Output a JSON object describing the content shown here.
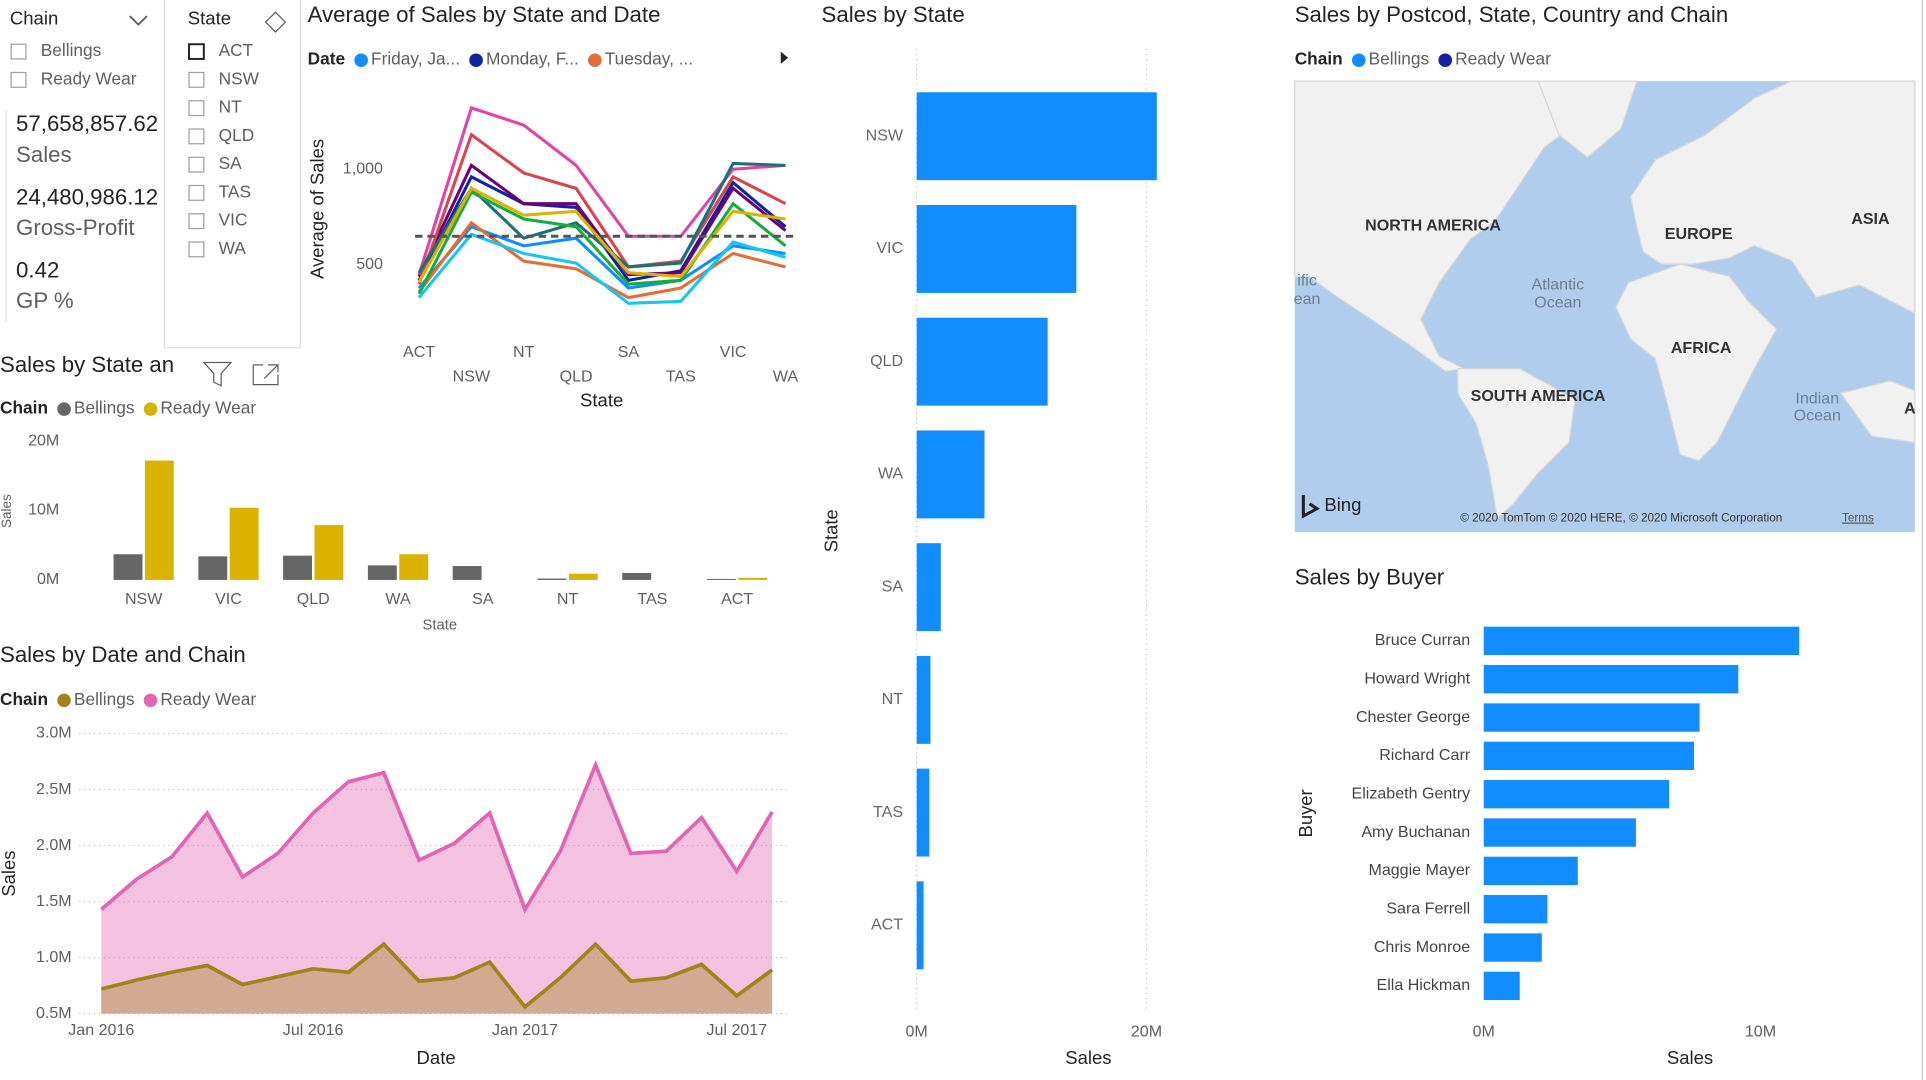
{
  "chain_slicer": {
    "title": "Chain",
    "items": [
      "Bellings",
      "Ready Wear"
    ]
  },
  "state_slicer": {
    "title": "State",
    "items": [
      "ACT",
      "NSW",
      "NT",
      "QLD",
      "SA",
      "TAS",
      "VIC",
      "WA"
    ]
  },
  "cards": [
    {
      "value": "57,658,857.62",
      "label": "Sales"
    },
    {
      "value": "24,480,986.12",
      "label": "Gross-Profit"
    },
    {
      "value": "0.42",
      "label": "GP %"
    }
  ],
  "map": {
    "title": "Sales by Postcod, State, Country and Chain",
    "legend_title": "Chain",
    "legend": [
      {
        "name": "Bellings",
        "color": "#118dff"
      },
      {
        "name": "Ready Wear",
        "color": "#12239e"
      }
    ],
    "labels": [
      "NORTH AMERICA",
      "EUROPE",
      "ASIA",
      "ific",
      "ean",
      "Atlantic",
      "Ocean",
      "AFRICA",
      "SOUTH AMERICA",
      "Indian",
      "Ocean",
      "A"
    ],
    "brand": "Bing",
    "copyright": "© 2020 TomTom © 2020 HERE, © 2020 Microsoft Corporation",
    "terms": "Terms"
  },
  "chart_data": [
    {
      "type": "line",
      "title": "Average of Sales by State and Date",
      "legend_title": "Date",
      "x_label": "State",
      "y_label": "Average of Sales",
      "categories": [
        "ACT",
        "NSW",
        "NT",
        "QLD",
        "SA",
        "TAS",
        "VIC",
        "WA"
      ],
      "ylim": [
        280,
        1370
      ],
      "yticks": [
        500,
        {
          "value": 1000,
          "label": "1,000"
        }
      ],
      "average_line": 650,
      "series": [
        {
          "name": "Friday, Ja...",
          "color": "#118dff",
          "values": [
            380,
            700,
            600,
            640,
            380,
            420,
            600,
            560
          ]
        },
        {
          "name": "Monday, F...",
          "color": "#12239e",
          "values": [
            420,
            960,
            820,
            800,
            420,
            470,
            930,
            700
          ]
        },
        {
          "name": "Tuesday, ...",
          "color": "#e66c37",
          "values": [
            360,
            720,
            520,
            480,
            330,
            380,
            560,
            490
          ]
        },
        {
          "color": "#6b007b",
          "values": [
            440,
            1020,
            820,
            820,
            450,
            460,
            900,
            680
          ]
        },
        {
          "color": "#e044a7",
          "values": [
            450,
            1320,
            1230,
            1020,
            650,
            650,
            1000,
            1020
          ]
        },
        {
          "color": "#d64550",
          "values": [
            400,
            1180,
            980,
            900,
            490,
            520,
            960,
            820
          ]
        },
        {
          "color": "#197278",
          "values": [
            460,
            900,
            640,
            720,
            490,
            510,
            1030,
            1020
          ]
        },
        {
          "color": "#1aab40",
          "values": [
            350,
            880,
            740,
            700,
            400,
            420,
            820,
            600
          ]
        },
        {
          "color": "#d9b300",
          "values": [
            410,
            900,
            760,
            780,
            460,
            440,
            780,
            740
          ]
        },
        {
          "color": "#15c6f4",
          "values": [
            330,
            660,
            560,
            510,
            300,
            310,
            620,
            540
          ]
        }
      ]
    },
    {
      "type": "bar",
      "title": "Sales by State an",
      "legend_title": "Chain",
      "x_label": "State",
      "y_label": "Sales",
      "categories": [
        "NSW",
        "VIC",
        "QLD",
        "WA",
        "SA",
        "NT",
        "TAS",
        "ACT"
      ],
      "ylim": [
        0,
        20000000
      ],
      "yticks": [
        {
          "value": 0,
          "label": "0M"
        },
        {
          "value": 10000000,
          "label": "10M"
        },
        {
          "value": 20000000,
          "label": "20M"
        }
      ],
      "series": [
        {
          "name": "Bellings",
          "color": "#666666",
          "values": [
            3700000,
            3400000,
            3500000,
            2100000,
            2000000,
            200000,
            1000000,
            150000
          ]
        },
        {
          "name": "Ready Wear",
          "color": "#d9b300",
          "values": [
            17200000,
            10400000,
            7900000,
            3700000,
            null,
            900000,
            null,
            300000
          ]
        }
      ]
    },
    {
      "type": "area",
      "title": "Sales by Date and Chain",
      "legend_title": "Chain",
      "x_label": "Date",
      "y_label": "Sales",
      "grid": true,
      "x": [
        "2016-01",
        "2016-02",
        "2016-03",
        "2016-04",
        "2016-05",
        "2016-06",
        "2016-07",
        "2016-08",
        "2016-09",
        "2016-10",
        "2016-11",
        "2016-12",
        "2017-01",
        "2017-02",
        "2017-03",
        "2017-04",
        "2017-05",
        "2017-06",
        "2017-07",
        "2017-08"
      ],
      "xlim": [
        "2016-01",
        "2017-08"
      ],
      "xticks": [
        {
          "value": "2016-01",
          "label": "Jan 2016"
        },
        {
          "value": "2016-07",
          "label": "Jul 2016"
        },
        {
          "value": "2017-01",
          "label": "Jan 2017"
        },
        {
          "value": "2017-07",
          "label": "Jul 2017"
        }
      ],
      "ylim": [
        500000,
        3000000
      ],
      "yticks": [
        {
          "value": 500000,
          "label": "0.5M"
        },
        {
          "value": 1000000,
          "label": "1.0M"
        },
        {
          "value": 1500000,
          "label": "1.5M"
        },
        {
          "value": 2000000,
          "label": "2.0M"
        },
        {
          "value": 2500000,
          "label": "2.5M"
        },
        {
          "value": 3000000,
          "label": "3.0M"
        }
      ],
      "series": [
        {
          "name": "Bellings",
          "color": "#a0841a",
          "values": [
            720000,
            800000,
            870000,
            930000,
            760000,
            830000,
            900000,
            870000,
            1120000,
            790000,
            820000,
            960000,
            560000,
            820000,
            1120000,
            790000,
            820000,
            940000,
            660000,
            890000
          ]
        },
        {
          "name": "Ready Wear",
          "color": "#e066b4",
          "values": [
            1430000,
            1700000,
            1900000,
            2290000,
            1720000,
            1930000,
            2290000,
            2570000,
            2650000,
            1870000,
            2020000,
            2290000,
            1430000,
            1950000,
            2720000,
            1930000,
            1950000,
            2250000,
            1770000,
            2300000
          ]
        }
      ]
    },
    {
      "type": "bar",
      "orientation": "horizontal",
      "title": "Sales by State",
      "x_label": "Sales",
      "y_label": "State",
      "color": "#118dff",
      "grid": true,
      "categories": [
        "NSW",
        "VIC",
        "QLD",
        "WA",
        "SA",
        "NT",
        "TAS",
        "ACT"
      ],
      "values": [
        20900000,
        13900000,
        11400000,
        5900000,
        2100000,
        1200000,
        1100000,
        600000
      ],
      "xlim": [
        0,
        22000000
      ],
      "xticks": [
        {
          "value": 0,
          "label": "0M"
        },
        {
          "value": 20000000,
          "label": "20M"
        }
      ]
    },
    {
      "type": "bar",
      "orientation": "horizontal",
      "title": "Sales by Buyer",
      "x_label": "Sales",
      "y_label": "Buyer",
      "color": "#118dff",
      "grid": false,
      "categories": [
        "Bruce Curran",
        "Howard Wright",
        "Chester George",
        "Richard Carr",
        "Elizabeth Gentry",
        "Amy Buchanan",
        "Maggie Mayer",
        "Sara Ferrell",
        "Chris Monroe",
        "Ella Hickman"
      ],
      "values": [
        11400000,
        9200000,
        7800000,
        7600000,
        6700000,
        5500000,
        3400000,
        2300000,
        2100000,
        1300000
      ],
      "xlim": [
        0,
        14000000
      ],
      "xticks": [
        {
          "value": 0,
          "label": "0M"
        },
        {
          "value": 10000000,
          "label": "10M"
        }
      ]
    }
  ]
}
